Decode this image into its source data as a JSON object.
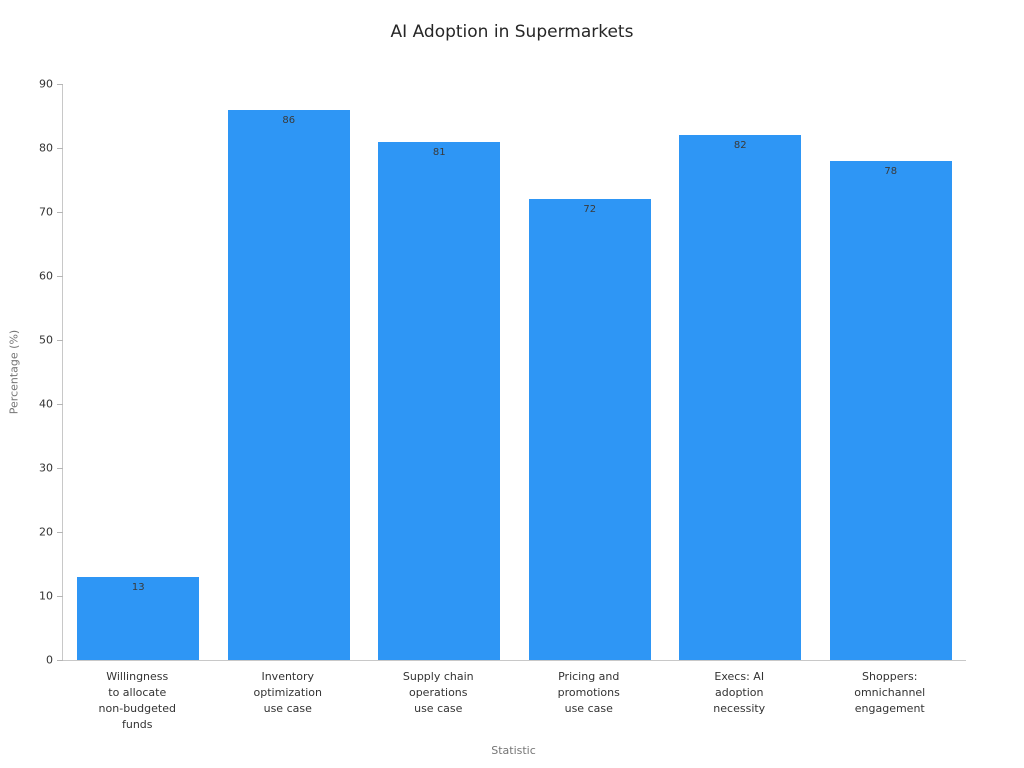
{
  "chart_data": {
    "type": "bar",
    "title": "AI Adoption in Supermarkets",
    "xlabel": "Statistic",
    "ylabel": "Percentage (%)",
    "ylim": [
      0,
      90
    ],
    "yticks": [
      0,
      10,
      20,
      30,
      40,
      50,
      60,
      70,
      80,
      90
    ],
    "categories": [
      "Willingness\nto allocate\nnon-budgeted\nfunds",
      "Inventory\noptimization\nuse case",
      "Supply chain\noperations\nuse case",
      "Pricing and\npromotions\nuse case",
      "Execs: AI\nadoption\nnecessity",
      "Shoppers:\nomnichannel\nengagement"
    ],
    "values": [
      13,
      86,
      81,
      72,
      82,
      78
    ],
    "bar_color": "#2e96f5",
    "value_label_color": "#3a3a3a",
    "grid": false,
    "legend": false
  }
}
